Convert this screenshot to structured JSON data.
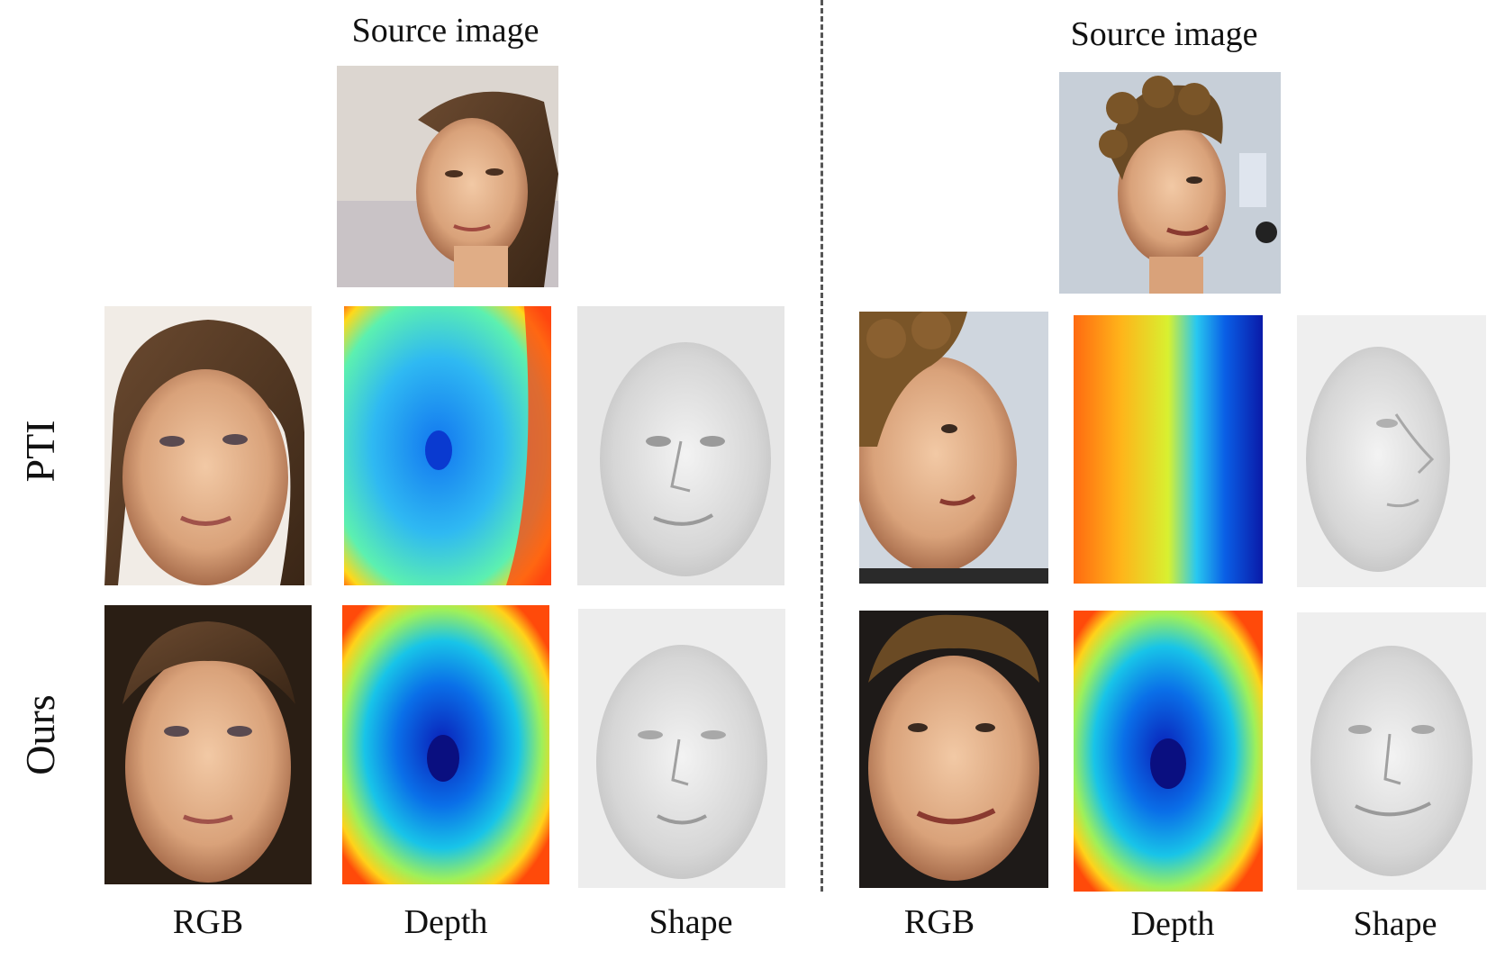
{
  "left": {
    "source_label": "Source image",
    "rows": [
      {
        "label": "PTI"
      },
      {
        "label": "Ours"
      }
    ]
  },
  "right": {
    "source_label": "Source image"
  },
  "columns": [
    "RGB",
    "Depth",
    "Shape",
    "RGB",
    "Depth",
    "Shape"
  ]
}
